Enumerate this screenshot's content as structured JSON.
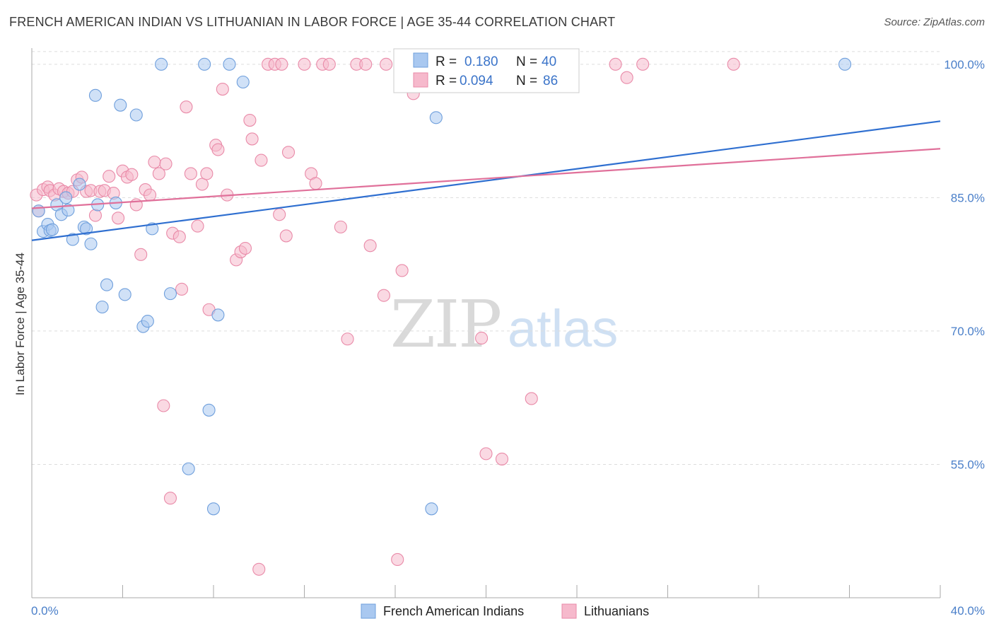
{
  "title": "FRENCH AMERICAN INDIAN VS LITHUANIAN IN LABOR FORCE | AGE 35-44 CORRELATION CHART",
  "source": "Source: ZipAtlas.com",
  "watermark": {
    "zip": "ZIP",
    "atlas": "atlas"
  },
  "colors": {
    "blue_fill": "#a9c8f0",
    "blue_stroke": "#6f9fdc",
    "blue_line": "#2f6fd0",
    "pink_fill": "#f6b9cc",
    "pink_stroke": "#e98aa8",
    "pink_line": "#e0709a",
    "grid": "#dddddd",
    "tick_text": "#4a7fc9"
  },
  "legend": {
    "rows": [
      {
        "r_label": "R =",
        "r_value": "0.180",
        "n_label": "N =",
        "n_value": "40"
      },
      {
        "r_label": "R =",
        "r_value": "0.094",
        "n_label": "N =",
        "n_value": "86"
      }
    ]
  },
  "bottom_legend": [
    "French American Indians",
    "Lithuanians"
  ],
  "chart_data": {
    "type": "scatter",
    "ylabel": "In Labor Force | Age 35-44",
    "xlim": [
      0,
      40
    ],
    "ylim": [
      40,
      101.5
    ],
    "x_tick_labels": [
      "0.0%",
      "40.0%"
    ],
    "y_ticks": [
      55,
      70,
      85,
      100
    ],
    "y_tick_labels": [
      "55.0%",
      "70.0%",
      "85.0%",
      "100.0%"
    ],
    "grid": true,
    "legend_position": "top-center",
    "series": [
      {
        "name": "French American Indians",
        "color": "#a9c8f0",
        "trend": {
          "x": [
            0,
            40
          ],
          "y": [
            80.2,
            93.6
          ]
        },
        "points": [
          [
            0.3,
            83.5
          ],
          [
            0.5,
            81.2
          ],
          [
            0.7,
            82.0
          ],
          [
            0.8,
            81.3
          ],
          [
            0.9,
            81.4
          ],
          [
            1.1,
            84.2
          ],
          [
            1.3,
            83.1
          ],
          [
            1.5,
            85.0
          ],
          [
            1.6,
            83.6
          ],
          [
            1.8,
            80.3
          ],
          [
            2.1,
            86.5
          ],
          [
            2.3,
            81.7
          ],
          [
            2.4,
            81.5
          ],
          [
            2.6,
            79.8
          ],
          [
            2.8,
            96.5
          ],
          [
            2.9,
            84.2
          ],
          [
            3.1,
            72.7
          ],
          [
            3.3,
            75.2
          ],
          [
            3.7,
            84.4
          ],
          [
            3.9,
            95.4
          ],
          [
            4.1,
            74.1
          ],
          [
            4.6,
            94.3
          ],
          [
            4.9,
            70.5
          ],
          [
            5.1,
            71.1
          ],
          [
            5.3,
            81.5
          ],
          [
            5.7,
            100.0
          ],
          [
            6.1,
            74.2
          ],
          [
            6.9,
            54.5
          ],
          [
            7.6,
            100.0
          ],
          [
            7.8,
            61.1
          ],
          [
            8.0,
            50.0
          ],
          [
            8.2,
            71.8
          ],
          [
            8.7,
            100.0
          ],
          [
            9.3,
            98.0
          ],
          [
            17.2,
            100.0
          ],
          [
            17.8,
            94.0
          ],
          [
            17.6,
            50.0
          ],
          [
            18.0,
            100.0
          ],
          [
            23.5,
            97.5
          ],
          [
            35.8,
            100.0
          ]
        ]
      },
      {
        "name": "Lithuanians",
        "color": "#f6b9cc",
        "trend": {
          "x": [
            0,
            40
          ],
          "y": [
            83.8,
            90.5
          ]
        },
        "points": [
          [
            0.2,
            85.3
          ],
          [
            0.3,
            83.5
          ],
          [
            0.5,
            85.9
          ],
          [
            0.7,
            86.2
          ],
          [
            0.8,
            85.8
          ],
          [
            1.0,
            85.3
          ],
          [
            1.2,
            86.0
          ],
          [
            1.4,
            85.7
          ],
          [
            1.6,
            85.5
          ],
          [
            1.8,
            85.7
          ],
          [
            2.0,
            87.0
          ],
          [
            2.2,
            87.3
          ],
          [
            2.4,
            85.7
          ],
          [
            2.6,
            85.8
          ],
          [
            2.8,
            83.0
          ],
          [
            3.0,
            85.7
          ],
          [
            3.2,
            85.8
          ],
          [
            3.4,
            87.4
          ],
          [
            3.6,
            85.5
          ],
          [
            3.8,
            82.7
          ],
          [
            4.0,
            88.0
          ],
          [
            4.2,
            87.3
          ],
          [
            4.4,
            87.6
          ],
          [
            4.6,
            84.2
          ],
          [
            4.8,
            78.6
          ],
          [
            5.0,
            85.9
          ],
          [
            5.2,
            85.3
          ],
          [
            5.4,
            89.0
          ],
          [
            5.6,
            87.7
          ],
          [
            5.9,
            88.8
          ],
          [
            5.8,
            61.6
          ],
          [
            6.1,
            51.2
          ],
          [
            6.2,
            81.0
          ],
          [
            6.5,
            80.6
          ],
          [
            6.6,
            74.7
          ],
          [
            6.8,
            95.2
          ],
          [
            7.0,
            87.7
          ],
          [
            7.3,
            81.8
          ],
          [
            7.5,
            86.5
          ],
          [
            7.7,
            87.7
          ],
          [
            7.8,
            72.4
          ],
          [
            8.1,
            90.9
          ],
          [
            8.2,
            90.4
          ],
          [
            8.4,
            97.2
          ],
          [
            8.6,
            85.3
          ],
          [
            9.0,
            78.0
          ],
          [
            9.2,
            78.9
          ],
          [
            9.4,
            79.3
          ],
          [
            9.6,
            93.7
          ],
          [
            9.7,
            91.6
          ],
          [
            10.1,
            89.2
          ],
          [
            10.0,
            43.2
          ],
          [
            10.4,
            100.0
          ],
          [
            10.7,
            100.0
          ],
          [
            11.0,
            100.0
          ],
          [
            10.9,
            83.1
          ],
          [
            11.2,
            80.7
          ],
          [
            11.3,
            90.1
          ],
          [
            12.0,
            100.0
          ],
          [
            12.3,
            87.7
          ],
          [
            12.5,
            86.6
          ],
          [
            12.8,
            100.0
          ],
          [
            13.1,
            100.0
          ],
          [
            13.6,
            81.7
          ],
          [
            13.9,
            69.1
          ],
          [
            14.3,
            100.0
          ],
          [
            14.7,
            100.0
          ],
          [
            14.9,
            79.6
          ],
          [
            15.5,
            74.0
          ],
          [
            15.6,
            100.0
          ],
          [
            16.1,
            44.3
          ],
          [
            16.3,
            76.8
          ],
          [
            16.8,
            96.7
          ],
          [
            17.3,
            100.0
          ],
          [
            19.3,
            100.0
          ],
          [
            19.8,
            69.2
          ],
          [
            20.0,
            56.2
          ],
          [
            20.7,
            55.6
          ],
          [
            21.4,
            100.0
          ],
          [
            22.0,
            62.4
          ],
          [
            22.5,
            100.0
          ],
          [
            25.7,
            100.0
          ],
          [
            26.2,
            98.5
          ],
          [
            26.9,
            100.0
          ],
          [
            30.9,
            100.0
          ],
          [
            20.9,
            100.0
          ]
        ]
      }
    ]
  }
}
